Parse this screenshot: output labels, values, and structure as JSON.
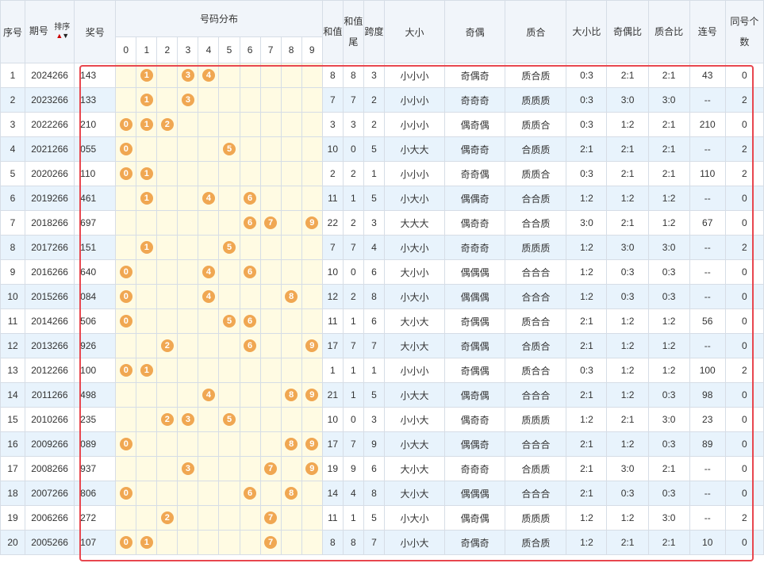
{
  "header": {
    "col_index": "序号",
    "col_period": "期号",
    "sort_label": "排序",
    "col_winning": "奖号",
    "col_dist": "号码分布",
    "digits": [
      "0",
      "1",
      "2",
      "3",
      "4",
      "5",
      "6",
      "7",
      "8",
      "9"
    ],
    "col_sum": "和值",
    "col_sum_tail": "和值尾",
    "col_span": "跨度",
    "col_size": "大小",
    "col_parity": "奇偶",
    "col_prime": "质合",
    "col_size_ratio": "大小比",
    "col_parity_ratio": "奇偶比",
    "col_prime_ratio": "质合比",
    "col_consecutive": "连号",
    "col_same_count": "同号个数"
  },
  "highlight_color": "#e8474f",
  "ball_color": "#f0a752",
  "rows": [
    {
      "idx": "1",
      "period": "2024266",
      "num": "143",
      "digits": [
        1,
        3,
        4
      ],
      "sum": "8",
      "tail": "8",
      "span": "3",
      "size": "小小小",
      "parity": "奇偶奇",
      "prime": "质合质",
      "sr": "0:3",
      "pr": "2:1",
      "qr": "2:1",
      "cons": "43",
      "same": "0"
    },
    {
      "idx": "2",
      "period": "2023266",
      "num": "133",
      "digits": [
        1,
        3
      ],
      "sum": "7",
      "tail": "7",
      "span": "2",
      "size": "小小小",
      "parity": "奇奇奇",
      "prime": "质质质",
      "sr": "0:3",
      "pr": "3:0",
      "qr": "3:0",
      "cons": "--",
      "same": "2"
    },
    {
      "idx": "3",
      "period": "2022266",
      "num": "210",
      "digits": [
        0,
        1,
        2
      ],
      "sum": "3",
      "tail": "3",
      "span": "2",
      "size": "小小小",
      "parity": "偶奇偶",
      "prime": "质质合",
      "sr": "0:3",
      "pr": "1:2",
      "qr": "2:1",
      "cons": "210",
      "same": "0"
    },
    {
      "idx": "4",
      "period": "2021266",
      "num": "055",
      "digits": [
        0,
        5
      ],
      "sum": "10",
      "tail": "0",
      "span": "5",
      "size": "小大大",
      "parity": "偶奇奇",
      "prime": "合质质",
      "sr": "2:1",
      "pr": "2:1",
      "qr": "2:1",
      "cons": "--",
      "same": "2"
    },
    {
      "idx": "5",
      "period": "2020266",
      "num": "110",
      "digits": [
        0,
        1
      ],
      "sum": "2",
      "tail": "2",
      "span": "1",
      "size": "小小小",
      "parity": "奇奇偶",
      "prime": "质质合",
      "sr": "0:3",
      "pr": "2:1",
      "qr": "2:1",
      "cons": "110",
      "same": "2"
    },
    {
      "idx": "6",
      "period": "2019266",
      "num": "461",
      "digits": [
        1,
        4,
        6
      ],
      "sum": "11",
      "tail": "1",
      "span": "5",
      "size": "小大小",
      "parity": "偶偶奇",
      "prime": "合合质",
      "sr": "1:2",
      "pr": "1:2",
      "qr": "1:2",
      "cons": "--",
      "same": "0"
    },
    {
      "idx": "7",
      "period": "2018266",
      "num": "697",
      "digits": [
        6,
        7,
        9
      ],
      "sum": "22",
      "tail": "2",
      "span": "3",
      "size": "大大大",
      "parity": "偶奇奇",
      "prime": "合合质",
      "sr": "3:0",
      "pr": "2:1",
      "qr": "1:2",
      "cons": "67",
      "same": "0"
    },
    {
      "idx": "8",
      "period": "2017266",
      "num": "151",
      "digits": [
        1,
        5
      ],
      "sum": "7",
      "tail": "7",
      "span": "4",
      "size": "小大小",
      "parity": "奇奇奇",
      "prime": "质质质",
      "sr": "1:2",
      "pr": "3:0",
      "qr": "3:0",
      "cons": "--",
      "same": "2"
    },
    {
      "idx": "9",
      "period": "2016266",
      "num": "640",
      "digits": [
        0,
        4,
        6
      ],
      "sum": "10",
      "tail": "0",
      "span": "6",
      "size": "大小小",
      "parity": "偶偶偶",
      "prime": "合合合",
      "sr": "1:2",
      "pr": "0:3",
      "qr": "0:3",
      "cons": "--",
      "same": "0"
    },
    {
      "idx": "10",
      "period": "2015266",
      "num": "084",
      "digits": [
        0,
        4,
        8
      ],
      "sum": "12",
      "tail": "2",
      "span": "8",
      "size": "小大小",
      "parity": "偶偶偶",
      "prime": "合合合",
      "sr": "1:2",
      "pr": "0:3",
      "qr": "0:3",
      "cons": "--",
      "same": "0"
    },
    {
      "idx": "11",
      "period": "2014266",
      "num": "506",
      "digits": [
        0,
        5,
        6
      ],
      "sum": "11",
      "tail": "1",
      "span": "6",
      "size": "大小大",
      "parity": "奇偶偶",
      "prime": "质合合",
      "sr": "2:1",
      "pr": "1:2",
      "qr": "1:2",
      "cons": "56",
      "same": "0"
    },
    {
      "idx": "12",
      "period": "2013266",
      "num": "926",
      "digits": [
        2,
        6,
        9
      ],
      "sum": "17",
      "tail": "7",
      "span": "7",
      "size": "大小大",
      "parity": "奇偶偶",
      "prime": "合质合",
      "sr": "2:1",
      "pr": "1:2",
      "qr": "1:2",
      "cons": "--",
      "same": "0"
    },
    {
      "idx": "13",
      "period": "2012266",
      "num": "100",
      "digits": [
        0,
        1
      ],
      "sum": "1",
      "tail": "1",
      "span": "1",
      "size": "小小小",
      "parity": "奇偶偶",
      "prime": "质合合",
      "sr": "0:3",
      "pr": "1:2",
      "qr": "1:2",
      "cons": "100",
      "same": "2"
    },
    {
      "idx": "14",
      "period": "2011266",
      "num": "498",
      "digits": [
        4,
        8,
        9
      ],
      "sum": "21",
      "tail": "1",
      "span": "5",
      "size": "小大大",
      "parity": "偶奇偶",
      "prime": "合合合",
      "sr": "2:1",
      "pr": "1:2",
      "qr": "0:3",
      "cons": "98",
      "same": "0"
    },
    {
      "idx": "15",
      "period": "2010266",
      "num": "235",
      "digits": [
        2,
        3,
        5
      ],
      "sum": "10",
      "tail": "0",
      "span": "3",
      "size": "小小大",
      "parity": "偶奇奇",
      "prime": "质质质",
      "sr": "1:2",
      "pr": "2:1",
      "qr": "3:0",
      "cons": "23",
      "same": "0"
    },
    {
      "idx": "16",
      "period": "2009266",
      "num": "089",
      "digits": [
        0,
        8,
        9
      ],
      "sum": "17",
      "tail": "7",
      "span": "9",
      "size": "小大大",
      "parity": "偶偶奇",
      "prime": "合合合",
      "sr": "2:1",
      "pr": "1:2",
      "qr": "0:3",
      "cons": "89",
      "same": "0"
    },
    {
      "idx": "17",
      "period": "2008266",
      "num": "937",
      "digits": [
        3,
        7,
        9
      ],
      "sum": "19",
      "tail": "9",
      "span": "6",
      "size": "大小大",
      "parity": "奇奇奇",
      "prime": "合质质",
      "sr": "2:1",
      "pr": "3:0",
      "qr": "2:1",
      "cons": "--",
      "same": "0"
    },
    {
      "idx": "18",
      "period": "2007266",
      "num": "806",
      "digits": [
        0,
        6,
        8
      ],
      "sum": "14",
      "tail": "4",
      "span": "8",
      "size": "大小大",
      "parity": "偶偶偶",
      "prime": "合合合",
      "sr": "2:1",
      "pr": "0:3",
      "qr": "0:3",
      "cons": "--",
      "same": "0"
    },
    {
      "idx": "19",
      "period": "2006266",
      "num": "272",
      "digits": [
        2,
        7
      ],
      "sum": "11",
      "tail": "1",
      "span": "5",
      "size": "小大小",
      "parity": "偶奇偶",
      "prime": "质质质",
      "sr": "1:2",
      "pr": "1:2",
      "qr": "3:0",
      "cons": "--",
      "same": "2"
    },
    {
      "idx": "20",
      "period": "2005266",
      "num": "107",
      "digits": [
        0,
        1,
        7
      ],
      "sum": "8",
      "tail": "8",
      "span": "7",
      "size": "小小大",
      "parity": "奇偶奇",
      "prime": "质合质",
      "sr": "1:2",
      "pr": "2:1",
      "qr": "2:1",
      "cons": "10",
      "same": "0"
    }
  ]
}
